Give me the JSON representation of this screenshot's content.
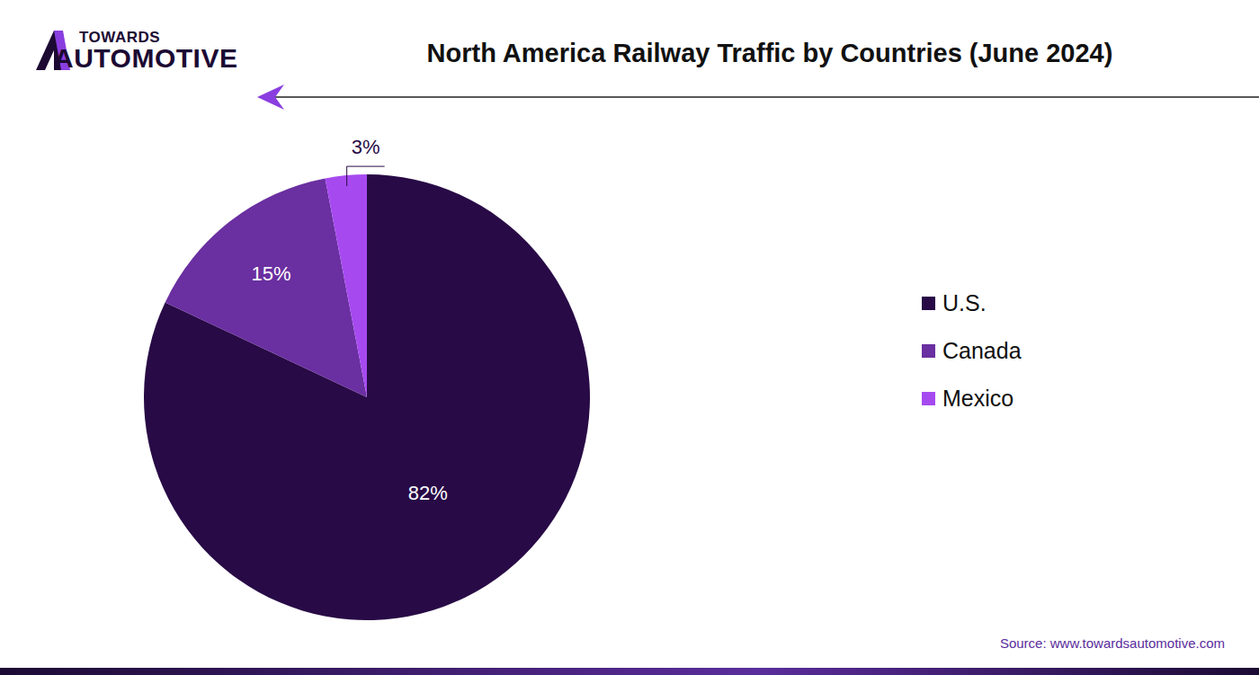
{
  "chart_data": {
    "type": "pie",
    "title": "North America Railway Traffic by Countries (June 2024)",
    "categories": [
      "U.S.",
      "Canada",
      "Mexico"
    ],
    "values": [
      82,
      15,
      3
    ],
    "value_labels": [
      "82%",
      "15%",
      "3%"
    ],
    "colors": [
      "#280a46",
      "#6a2fa0",
      "#a64af0"
    ],
    "data_labels": true,
    "legend": "right",
    "source": "Source: www.towardsautomotive.com",
    "logo": [
      "TOWARDS",
      "AUTOMOTIVE"
    ]
  }
}
